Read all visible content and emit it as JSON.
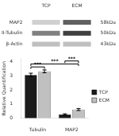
{
  "chart_data": [
    {
      "type": "blot",
      "categories": [
        "TCP",
        "ECM"
      ],
      "series": [
        {
          "name": "MAP2",
          "colors": [
            "#d0d0d0",
            "#606060"
          ]
        },
        {
          "name": "βIII-Tubulin",
          "colors": [
            "#808080",
            "#404040"
          ]
        },
        {
          "name": "β-Actin",
          "colors": [
            "#c0c0c0",
            "#c0c0c0"
          ]
        }
      ],
      "annotations": [
        "58kDa",
        "50kDa",
        "43kDa"
      ]
    },
    {
      "type": "bar",
      "categories": [
        "Tubulin",
        "MAP2"
      ],
      "series": [
        {
          "name": "TCP",
          "color": "#1a1a1a",
          "values": [
            3.05,
            0.28
          ],
          "errors": [
            0.12,
            0.04
          ]
        },
        {
          "name": "ECM",
          "color": "#c0c0c0",
          "values": [
            3.3,
            0.62
          ],
          "errors": [
            0.1,
            0.07
          ]
        }
      ],
      "ylabel": "Relative Quantification",
      "ylim": [
        0,
        4.2
      ],
      "yticks": [
        0,
        1,
        2,
        3,
        4
      ],
      "grid": false,
      "legend": "right",
      "annotations": [
        {
          "text": "***",
          "from": {
            "category": "Tubulin",
            "series": "TCP"
          },
          "to": {
            "category": "Tubulin",
            "series": "ECM"
          }
        },
        {
          "text": "***",
          "from": {
            "category": "Tubulin",
            "series": "TCP"
          },
          "to": {
            "category": "MAP2",
            "series": "ECM"
          }
        },
        {
          "text": "***",
          "from": {
            "category": "MAP2",
            "series": "TCP"
          },
          "to": {
            "category": "MAP2",
            "series": "ECM"
          }
        }
      ]
    }
  ]
}
